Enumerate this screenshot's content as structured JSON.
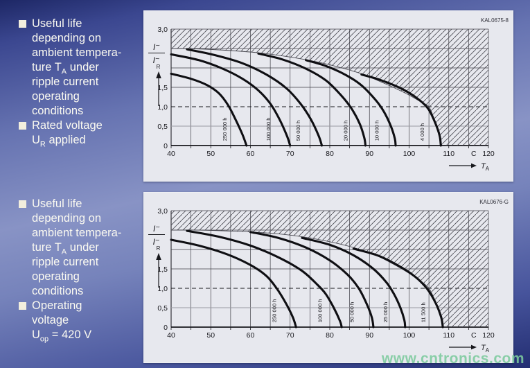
{
  "watermark": "www.cntronics.com",
  "colors": {
    "panel_bg": "#e7e8ee",
    "grid": "#3f3f46",
    "grid_grey": "#9a9aa2",
    "axis": "#17171c",
    "curve": "#0f0f13",
    "hatch": "#46464e",
    "label_text": "#15151a",
    "id_text": "#2f2f38",
    "bullet_text": "#fbfaf1",
    "bullet_square": "#f2eedd",
    "watermark_green": "#7cc99d"
  },
  "bullet_groups": [
    {
      "items": [
        {
          "lines": [
            "Useful life",
            "depending on",
            "ambient tempera-",
            "ture T_{A} under",
            "ripple current",
            "operating",
            "conditions"
          ]
        },
        {
          "lines": [
            "Rated voltage",
            "U_{R} applied"
          ]
        }
      ]
    },
    {
      "items": [
        {
          "lines": [
            "Useful life",
            "depending on",
            "ambient tempera-",
            "ture T_{A} under",
            "ripple current",
            "operating",
            "conditions"
          ]
        },
        {
          "lines": [
            "Operating",
            "voltage",
            "U_{op} = 420 V"
          ]
        }
      ]
    }
  ],
  "chart_data": [
    {
      "type": "line",
      "id_label": "KAL0675-8",
      "title": "Useful life vs ambient temperature, rated voltage UR applied",
      "xlabel": "TA (C)",
      "ylabel": "I~ / I~R",
      "xlim": [
        40,
        120
      ],
      "ylim": [
        0,
        3
      ],
      "x_minor_step": 5,
      "x_tick_labels": [
        {
          "v": 40,
          "t": "40"
        },
        {
          "v": 50,
          "t": "50"
        },
        {
          "v": 60,
          "t": "60"
        },
        {
          "v": 70,
          "t": "70"
        },
        {
          "v": 80,
          "t": "80"
        },
        {
          "v": 90,
          "t": "90"
        },
        {
          "v": 100,
          "t": "100"
        },
        {
          "v": 110,
          "t": "110"
        },
        {
          "v": 116.3,
          "t": "C"
        },
        {
          "v": 120,
          "t": "120"
        }
      ],
      "y_tick_labels": [
        {
          "v": 3,
          "t": "3,0"
        },
        {
          "v": 1.5,
          "t": "1,5"
        },
        {
          "v": 1,
          "t": "1,0"
        },
        {
          "v": 0.5,
          "t": "0,5"
        },
        {
          "v": 0,
          "t": "0"
        }
      ],
      "dashed_line_y": 1.0,
      "grey_line_y": 0.5,
      "y_axis_fraction": {
        "num_main": "I",
        "num_sup": "∼",
        "den_main": "I",
        "den_sup": "∼",
        "den_sub": "R"
      },
      "x_axis_arrow_label": {
        "main": "T",
        "sub": "A"
      },
      "hatch_boundary": [
        [
          40,
          2.5
        ],
        [
          44,
          2.5
        ],
        [
          53,
          2.46
        ],
        [
          62,
          2.39
        ],
        [
          70,
          2.28
        ],
        [
          77,
          2.15
        ],
        [
          83,
          2.0
        ],
        [
          88,
          1.85
        ],
        [
          92,
          1.68
        ],
        [
          96,
          1.5
        ],
        [
          100,
          1.3
        ],
        [
          103,
          1.12
        ],
        [
          105,
          1.0
        ],
        [
          106.4,
          0.65
        ],
        [
          107.6,
          0.25
        ],
        [
          108,
          0
        ]
      ],
      "series": [
        {
          "name": "250 000 h",
          "label_x": 54.0,
          "points": [
            [
              40,
              1.85
            ],
            [
              45,
              1.72
            ],
            [
              49,
              1.56
            ],
            [
              52,
              1.35
            ],
            [
              54.3,
              1.05
            ],
            [
              56.2,
              0.68
            ],
            [
              58,
              0.28
            ],
            [
              59,
              0
            ]
          ]
        },
        {
          "name": "100 000 h",
          "label_x": 65.0,
          "points": [
            [
              40,
              2.35
            ],
            [
              47,
              2.2
            ],
            [
              53,
              1.98
            ],
            [
              58,
              1.72
            ],
            [
              62,
              1.42
            ],
            [
              65,
              1.08
            ],
            [
              67.3,
              0.68
            ],
            [
              69.2,
              0.25
            ],
            [
              70,
              0
            ]
          ]
        },
        {
          "name": "50 000 h",
          "label_x": 72.5,
          "points": [
            [
              44,
              2.48
            ],
            [
              51,
              2.33
            ],
            [
              58,
              2.12
            ],
            [
              64,
              1.83
            ],
            [
              69,
              1.48
            ],
            [
              72.6,
              1.08
            ],
            [
              75.2,
              0.68
            ],
            [
              77.2,
              0.25
            ],
            [
              78,
              0
            ]
          ]
        },
        {
          "name": "20 000 h",
          "label_x": 84.5,
          "points": [
            [
              62,
              2.37
            ],
            [
              68,
              2.22
            ],
            [
              74,
              1.98
            ],
            [
              79,
              1.68
            ],
            [
              82.8,
              1.3
            ],
            [
              85.5,
              0.95
            ],
            [
              87.6,
              0.55
            ],
            [
              88.7,
              0.2
            ],
            [
              89,
              0
            ]
          ]
        },
        {
          "name": "10 000 h",
          "label_x": 92.3,
          "points": [
            [
              74,
              2.2
            ],
            [
              79,
              2.05
            ],
            [
              84,
              1.82
            ],
            [
              88,
              1.55
            ],
            [
              91.5,
              1.18
            ],
            [
              93.6,
              0.88
            ],
            [
              95.4,
              0.5
            ],
            [
              96.4,
              0.18
            ],
            [
              96.6,
              0
            ]
          ]
        },
        {
          "name": "4 000 h",
          "label_x": 103.8,
          "points": [
            [
              88,
              1.83
            ],
            [
              93,
              1.68
            ],
            [
              98,
              1.47
            ],
            [
              102,
              1.22
            ],
            [
              104.8,
              0.95
            ],
            [
              106.6,
              0.58
            ],
            [
              107.7,
              0.25
            ],
            [
              108,
              0
            ]
          ]
        }
      ]
    },
    {
      "type": "line",
      "id_label": "KAL0676-G",
      "title": "Useful life vs ambient temperature, operating voltage Uop = 420 V",
      "xlabel": "TA (C)",
      "ylabel": "I~ / I~R",
      "xlim": [
        40,
        120
      ],
      "ylim": [
        0,
        3
      ],
      "x_minor_step": 5,
      "x_tick_labels": [
        {
          "v": 40,
          "t": "40"
        },
        {
          "v": 50,
          "t": "50"
        },
        {
          "v": 60,
          "t": "60"
        },
        {
          "v": 70,
          "t": "70"
        },
        {
          "v": 80,
          "t": "80"
        },
        {
          "v": 90,
          "t": "90"
        },
        {
          "v": 100,
          "t": "100"
        },
        {
          "v": 110,
          "t": "110"
        },
        {
          "v": 116.3,
          "t": "C"
        },
        {
          "v": 120,
          "t": "120"
        }
      ],
      "y_tick_labels": [
        {
          "v": 3,
          "t": "3,0"
        },
        {
          "v": 1.5,
          "t": "1,5"
        },
        {
          "v": 1,
          "t": "1,0"
        },
        {
          "v": 0.5,
          "t": "0,5"
        },
        {
          "v": 0,
          "t": "0"
        }
      ],
      "dashed_line_y": 1.0,
      "grey_line_y": 0.5,
      "y_axis_fraction": {
        "num_main": "I",
        "num_sup": "∼",
        "den_main": "I",
        "den_sup": "∼",
        "den_sub": "R"
      },
      "x_axis_arrow_label": {
        "main": "T",
        "sub": "A"
      },
      "hatch_boundary": [
        [
          40,
          2.5
        ],
        [
          47,
          2.5
        ],
        [
          56,
          2.47
        ],
        [
          65,
          2.42
        ],
        [
          73,
          2.33
        ],
        [
          80,
          2.2
        ],
        [
          86,
          2.05
        ],
        [
          91,
          1.88
        ],
        [
          95,
          1.68
        ],
        [
          99,
          1.45
        ],
        [
          102,
          1.25
        ],
        [
          105,
          1.0
        ],
        [
          106.8,
          0.6
        ],
        [
          108.1,
          0.22
        ],
        [
          108.5,
          0
        ]
      ],
      "series": [
        {
          "name": "250 000 h",
          "label_x": 66.5,
          "points": [
            [
              40,
              2.25
            ],
            [
              47,
              2.1
            ],
            [
              54,
              1.88
            ],
            [
              60,
              1.6
            ],
            [
              64,
              1.32
            ],
            [
              66.6,
              1.0
            ],
            [
              68.9,
              0.62
            ],
            [
              70.7,
              0.25
            ],
            [
              71.5,
              0
            ]
          ]
        },
        {
          "name": "100 000 h",
          "label_x": 78.0,
          "points": [
            [
              44,
              2.48
            ],
            [
              52,
              2.33
            ],
            [
              60,
              2.1
            ],
            [
              67,
              1.8
            ],
            [
              73,
              1.45
            ],
            [
              77,
              1.08
            ],
            [
              79,
              0.85
            ],
            [
              81,
              0.5
            ],
            [
              82.6,
              0.15
            ],
            [
              83,
              0
            ]
          ]
        },
        {
          "name": "50 000 h",
          "label_x": 86.0,
          "points": [
            [
              60,
              2.45
            ],
            [
              67,
              2.3
            ],
            [
              74,
              2.05
            ],
            [
              80,
              1.72
            ],
            [
              84.5,
              1.35
            ],
            [
              87.3,
              1.0
            ],
            [
              89.3,
              0.6
            ],
            [
              90.6,
              0.25
            ],
            [
              91,
              0
            ]
          ]
        },
        {
          "name": "25 000 h",
          "label_x": 94.5,
          "points": [
            [
              73,
              2.3
            ],
            [
              80,
              2.12
            ],
            [
              86,
              1.85
            ],
            [
              91,
              1.5
            ],
            [
              94.3,
              1.15
            ],
            [
              96.2,
              0.85
            ],
            [
              97.8,
              0.5
            ],
            [
              98.8,
              0.18
            ],
            [
              99,
              0
            ]
          ]
        },
        {
          "name": "11 500 h",
          "label_x": 104.0,
          "points": [
            [
              86,
              2.02
            ],
            [
              92,
              1.85
            ],
            [
              97,
              1.6
            ],
            [
              101.5,
              1.3
            ],
            [
              104.6,
              0.98
            ],
            [
              106.7,
              0.62
            ],
            [
              108.1,
              0.25
            ],
            [
              108.5,
              0
            ]
          ]
        }
      ]
    }
  ]
}
